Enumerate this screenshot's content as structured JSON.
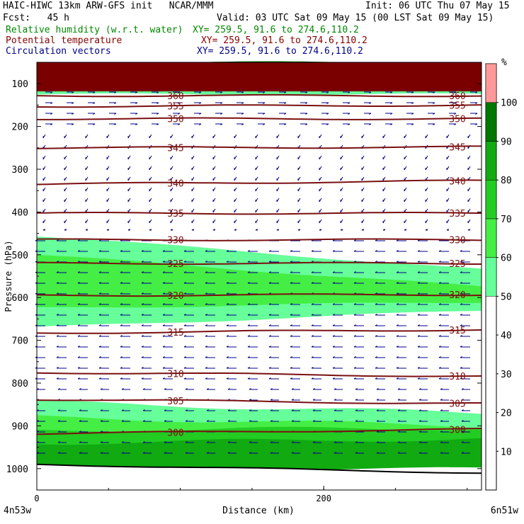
{
  "header": {
    "line1_left": "HAIC-HIWC 13km ARW-GFS init   NCAR/MMM",
    "line1_right": "Init: 06 UTC Thu 07 May 15",
    "line2_left": "Fcst:   45 h",
    "line2_right": "Valid: 03 UTC Sat 09 May 15 (00 LST Sat 09 May 15)",
    "fields": [
      {
        "label": "Relative humidity (w.r.t. water)",
        "xy": "XY= 259.5, 91.6 to 274.6,110.2",
        "color": "#008800"
      },
      {
        "label": "Potential temperature",
        "xy": "XY= 259.5, 91.6 to 274.6,110.2",
        "color": "#880000"
      },
      {
        "label": "Circulation vectors",
        "xy": "XY= 259.5, 91.6 to 274.6,110.2",
        "color": "#000088"
      }
    ]
  },
  "chart_data": {
    "type": "heatmap",
    "ylabel": "Pressure (hPa)",
    "xlabel": "Distance (km)",
    "x_ticks": [
      "0",
      "200"
    ],
    "x_endpoints": [
      "4n53w",
      "6n51w"
    ],
    "x_range_km": [
      0,
      310
    ],
    "y_ticks": [
      100,
      200,
      300,
      400,
      500,
      600,
      700,
      800,
      900,
      1000
    ],
    "y_range_hPa": [
      50,
      1050
    ],
    "colorbar": {
      "unit": "%",
      "ticks": [
        10,
        20,
        30,
        40,
        50,
        60,
        70,
        80,
        90,
        100
      ],
      "bins": [
        {
          "min": 50,
          "max": 60,
          "color": "#66ff99"
        },
        {
          "min": 60,
          "max": 70,
          "color": "#44ee44"
        },
        {
          "min": 70,
          "max": 80,
          "color": "#22cc22"
        },
        {
          "min": 80,
          "max": 90,
          "color": "#11aa11"
        },
        {
          "min": 90,
          "max": 100,
          "color": "#007700"
        },
        {
          "min": 100,
          "max": 110,
          "color": "#ff9999"
        }
      ]
    },
    "theta_contours": [
      {
        "value": 360,
        "p_left": 128,
        "p_right": 128
      },
      {
        "value": 355,
        "p_left": 153,
        "p_right": 150
      },
      {
        "value": 350,
        "p_left": 182,
        "p_right": 182
      },
      {
        "value": 345,
        "p_left": 250,
        "p_right": 248
      },
      {
        "value": 340,
        "p_left": 335,
        "p_right": 327
      },
      {
        "value": 335,
        "p_left": 403,
        "p_right": 403
      },
      {
        "value": 330,
        "p_left": 465,
        "p_right": 465
      },
      {
        "value": 325,
        "p_left": 520,
        "p_right": 520
      },
      {
        "value": 320,
        "p_left": 595,
        "p_right": 593
      },
      {
        "value": 315,
        "p_left": 683,
        "p_right": 675
      },
      {
        "value": 310,
        "p_left": 775,
        "p_right": 784
      },
      {
        "value": 305,
        "p_left": 838,
        "p_right": 848
      },
      {
        "value": 300,
        "p_left": 918,
        "p_right": 908
      }
    ],
    "rh_regions": [
      {
        "rh": 95,
        "top_left": 50,
        "top_right": 50,
        "bot_left": 120,
        "bot_right": 120
      },
      {
        "rh": 55,
        "top_left": 110,
        "top_right": 110,
        "bot_left": 125,
        "bot_right": 125
      },
      {
        "rh": 55,
        "top_left": 455,
        "top_right": 535,
        "bot_left": 670,
        "bot_right": 630
      },
      {
        "rh": 65,
        "top_left": 500,
        "top_right": 575,
        "bot_left": 625,
        "bot_right": 610
      },
      {
        "rh": 55,
        "top_left": 845,
        "top_right": 870,
        "bot_left": 960,
        "bot_right": 960
      },
      {
        "rh": 65,
        "top_left": 880,
        "top_right": 900,
        "bot_left": 960,
        "bot_right": 960
      },
      {
        "rh": 75,
        "top_left": 910,
        "top_right": 905,
        "bot_left": 985,
        "bot_right": 985
      },
      {
        "rh": 85,
        "top_left": 940,
        "top_right": 930,
        "bot_left": 1000,
        "bot_right": 1000
      }
    ],
    "terrain": {
      "p_left": 990,
      "p_right": 1010
    },
    "wind": {
      "direction": "westward",
      "color": "#000088"
    }
  }
}
